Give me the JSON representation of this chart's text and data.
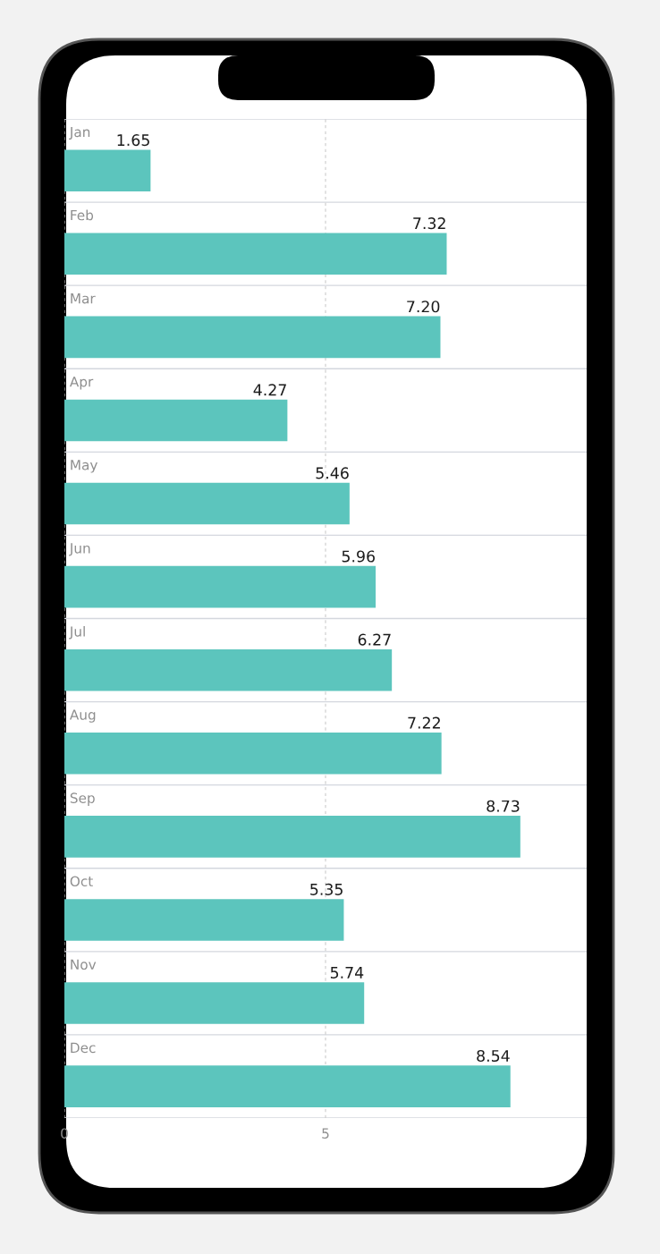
{
  "chart_data": {
    "type": "bar",
    "orientation": "horizontal",
    "categories": [
      "Jan",
      "Feb",
      "Mar",
      "Apr",
      "May",
      "Jun",
      "Jul",
      "Aug",
      "Sep",
      "Oct",
      "Nov",
      "Dec"
    ],
    "values": [
      1.65,
      7.32,
      7.2,
      4.27,
      5.46,
      5.96,
      6.27,
      7.22,
      8.73,
      5.35,
      5.74,
      8.54
    ],
    "value_labels": [
      "1.65",
      "7.32",
      "7.20",
      "4.27",
      "5.46",
      "5.96",
      "6.27",
      "7.22",
      "8.73",
      "5.35",
      "5.74",
      "8.54"
    ],
    "color": "#5cc5bd",
    "xlim": [
      0,
      10
    ],
    "xticks": [
      0,
      5
    ],
    "grid": "x"
  }
}
